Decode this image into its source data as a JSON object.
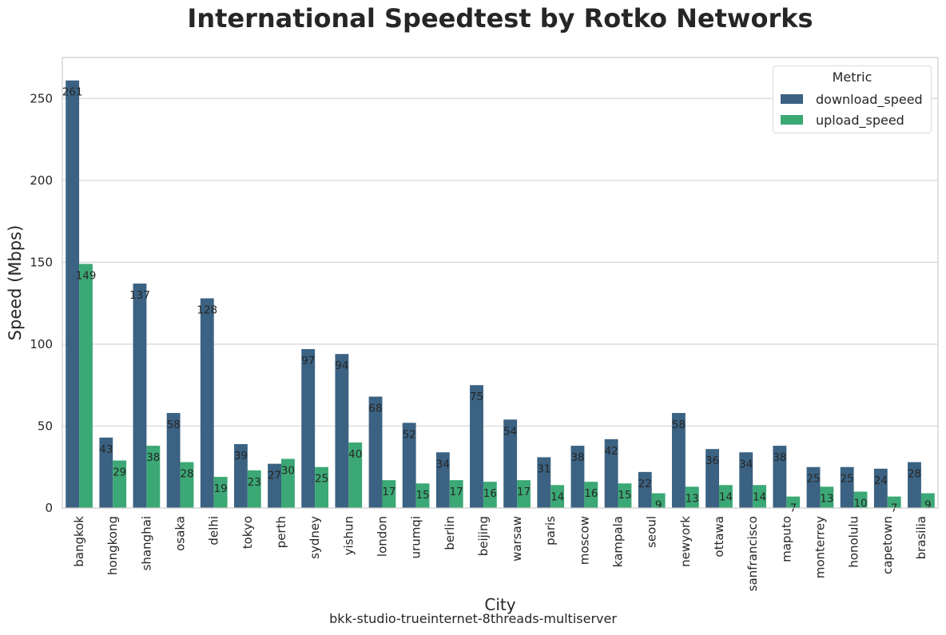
{
  "chart_data": {
    "type": "bar",
    "title": "International Speedtest by Rotko Networks",
    "xlabel": "City",
    "ylabel": "Speed (Mbps)",
    "caption": "bkk-studio-trueinternet-8threads-multiserver",
    "ylim": [
      0,
      275
    ],
    "yticks": [
      0,
      50,
      100,
      150,
      200,
      250
    ],
    "grid": true,
    "legend": {
      "title": "Metric",
      "placement": "top-right"
    },
    "categories": [
      "bangkok",
      "hongkong",
      "shanghai",
      "osaka",
      "delhi",
      "tokyo",
      "perth",
      "sydney",
      "yishun",
      "london",
      "urumqi",
      "berlin",
      "beijing",
      "warsaw",
      "paris",
      "moscow",
      "kampala",
      "seoul",
      "newyork",
      "ottawa",
      "sanfrancisco",
      "maputo",
      "monterrey",
      "honolulu",
      "capetown",
      "brasilia"
    ],
    "series": [
      {
        "name": "download_speed",
        "color": "#3b6282",
        "values": [
          261,
          43,
          137,
          58,
          128,
          39,
          27,
          97,
          94,
          68,
          52,
          34,
          75,
          54,
          31,
          38,
          42,
          22,
          58,
          36,
          34,
          38,
          25,
          25,
          24,
          28
        ]
      },
      {
        "name": "upload_speed",
        "color": "#3ba875",
        "values": [
          149,
          29,
          38,
          28,
          19,
          23,
          30,
          25,
          40,
          17,
          15,
          17,
          16,
          17,
          14,
          16,
          15,
          9,
          13,
          14,
          14,
          7,
          13,
          10,
          7,
          9
        ]
      }
    ]
  }
}
